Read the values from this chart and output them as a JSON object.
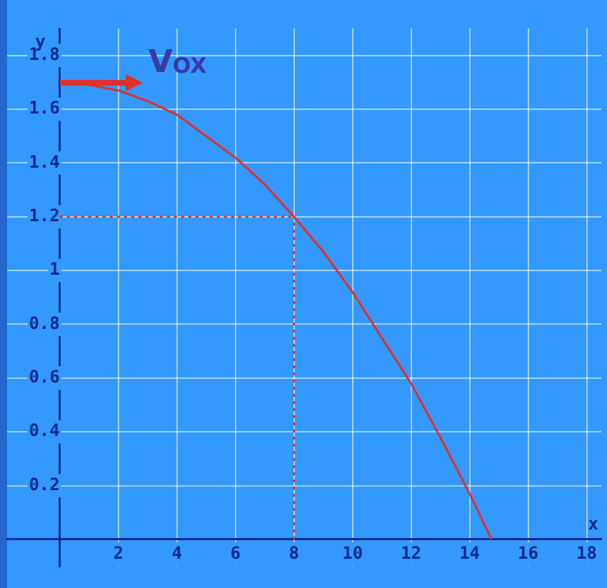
{
  "chart_data": {
    "type": "line",
    "xlabel": "x",
    "ylabel": "y",
    "xlim": [
      -1.8,
      18.5
    ],
    "ylim": [
      -0.1,
      1.9
    ],
    "xticks": [
      2,
      4,
      6,
      8,
      10,
      12,
      14,
      16,
      18
    ],
    "yticks": [
      0.2,
      0.4,
      0.6,
      0.8,
      1,
      1.2,
      1.4,
      1.6,
      1.8
    ],
    "grid": true,
    "marker": "none",
    "annotations": [
      {
        "text": "VOX",
        "x": 0,
        "y": 1.7
      }
    ],
    "series": [
      {
        "color": "#e0302a",
        "x": [
          0,
          1,
          2,
          3,
          4,
          5,
          6,
          7,
          8,
          9,
          10,
          11,
          12,
          13,
          14,
          14.75
        ],
        "values": [
          1.7,
          1.69,
          1.67,
          1.63,
          1.58,
          1.5,
          1.42,
          1.32,
          1.2,
          1.07,
          0.92,
          0.75,
          0.58,
          0.38,
          0.17,
          0
        ]
      },
      {
        "color": "#e0302a",
        "line_style": "dotted",
        "x": [
          0,
          8
        ],
        "values": [
          1.2,
          1.2
        ]
      },
      {
        "color": "#e0302a",
        "line_style": "dotted",
        "x": [
          8,
          8
        ],
        "values": [
          0,
          1.2
        ]
      }
    ]
  }
}
